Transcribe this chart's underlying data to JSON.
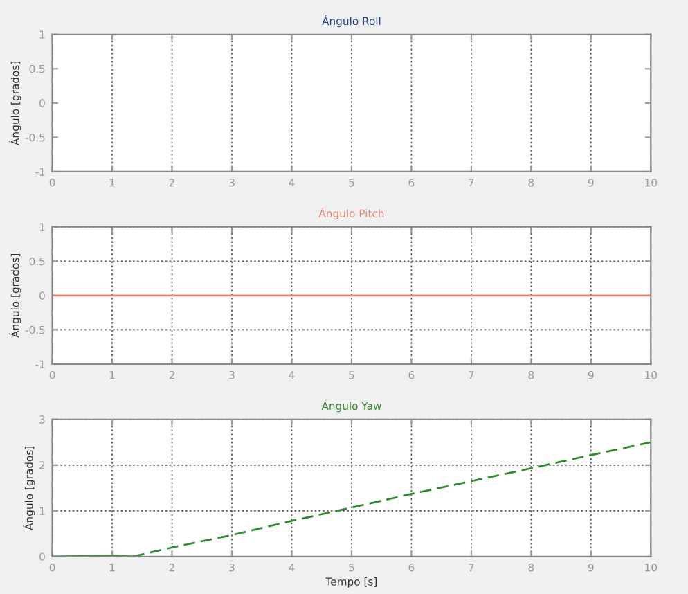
{
  "chart_data": [
    {
      "type": "line",
      "title": "Ángulo Roll",
      "ylabel": "Ángulo [grados]",
      "xlim": [
        0,
        10
      ],
      "xticks": [
        0,
        1,
        2,
        3,
        4,
        5,
        6,
        7,
        8,
        9,
        10
      ],
      "ylim": [
        -1,
        1
      ],
      "yticks": [
        -1,
        -0.5,
        0,
        0.5,
        1
      ],
      "grid": "x"
    },
    {
      "type": "line",
      "title": "Ángulo Pitch",
      "ylabel": "Ángulo [grados]",
      "xlim": [
        0,
        10
      ],
      "xticks": [
        0,
        1,
        2,
        3,
        4,
        5,
        6,
        7,
        8,
        9,
        10
      ],
      "ylim": [
        -1,
        1
      ],
      "yticks": [
        -1,
        -0.5,
        0,
        0.5,
        1
      ],
      "grid": true,
      "series": [
        {
          "color": "#e8856c",
          "x": [
            0,
            10
          ],
          "values": [
            0,
            0
          ],
          "line_style": "solid"
        }
      ]
    },
    {
      "type": "line",
      "title": "Ángulo Yaw",
      "xlabel": "Tempo [s]",
      "ylabel": "Ángulo [grados]",
      "xlim": [
        0,
        10
      ],
      "xticks": [
        0,
        1,
        2,
        3,
        4,
        5,
        6,
        7,
        8,
        9,
        10
      ],
      "ylim": [
        0,
        3
      ],
      "yticks": [
        0,
        1,
        2,
        3
      ],
      "grid": true,
      "series": [
        {
          "color": "#2e8b2e",
          "x": [
            0,
            1,
            1.35
          ],
          "values": [
            0,
            0.02,
            0
          ],
          "line_style": "solid"
        },
        {
          "color": "#2e8b2e",
          "x": [
            1.35,
            2,
            3,
            4,
            5,
            6,
            7,
            8,
            9,
            10
          ],
          "values": [
            0,
            0.2,
            0.47,
            0.78,
            1.07,
            1.37,
            1.65,
            1.93,
            2.22,
            2.5
          ],
          "line_style": "dashed"
        }
      ]
    }
  ]
}
